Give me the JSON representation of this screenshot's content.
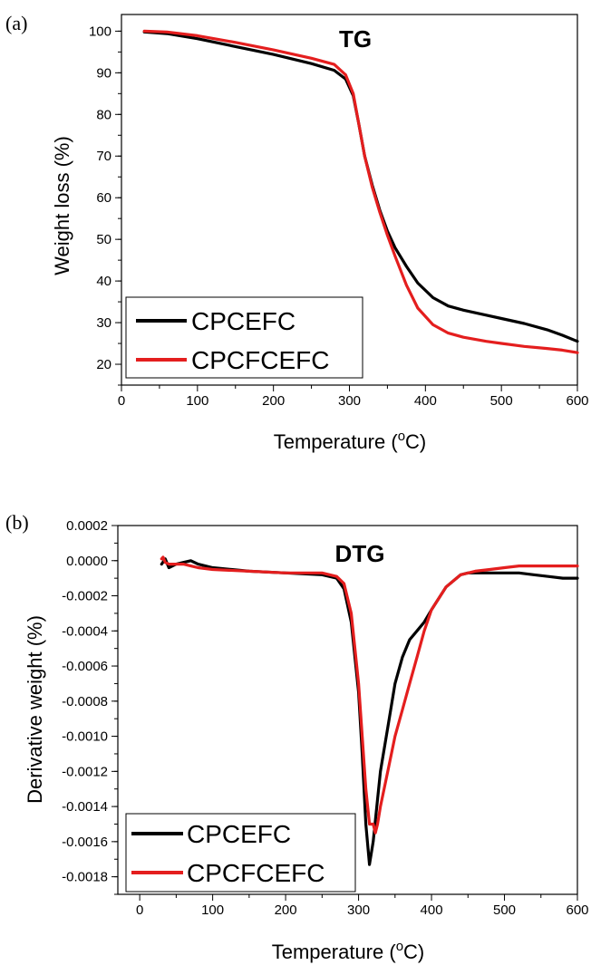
{
  "chart_data": [
    {
      "type": "line",
      "panel_label": "(a)",
      "title": "TG",
      "xlabel": "Temperature (",
      "xlabel_sup": "o",
      "xlabel_unit": "C)",
      "ylabel": "Weight loss (%)",
      "xlim": [
        0,
        600
      ],
      "ylim": [
        15,
        104
      ],
      "xticks": [
        "0",
        "100",
        "200",
        "300",
        "400",
        "500",
        "600"
      ],
      "yticks": [
        "20",
        "30",
        "40",
        "50",
        "60",
        "70",
        "80",
        "90",
        "100"
      ],
      "legend_position": "bottom-left",
      "series": [
        {
          "name": "CPCEFC",
          "color": "#000000",
          "x": [
            30,
            60,
            100,
            150,
            200,
            250,
            280,
            295,
            305,
            312,
            320,
            330,
            340,
            350,
            360,
            375,
            390,
            410,
            430,
            450,
            480,
            500,
            530,
            560,
            580,
            600
          ],
          "y": [
            99.8,
            99.4,
            98.2,
            96.3,
            94.4,
            92.2,
            90.6,
            88.5,
            84.5,
            78.0,
            70.0,
            63.0,
            57.0,
            52.0,
            48.0,
            43.5,
            39.5,
            36.0,
            34.0,
            33.0,
            31.8,
            31.0,
            29.8,
            28.3,
            27.0,
            25.5
          ]
        },
        {
          "name": "CPCFCEFC",
          "color": "#e41e1e",
          "x": [
            30,
            60,
            100,
            150,
            200,
            250,
            280,
            295,
            305,
            312,
            320,
            330,
            340,
            350,
            360,
            375,
            390,
            410,
            430,
            450,
            480,
            500,
            530,
            560,
            580,
            600
          ],
          "y": [
            100.0,
            99.8,
            98.9,
            97.3,
            95.5,
            93.5,
            92.0,
            89.5,
            85.0,
            78.0,
            70.0,
            62.5,
            56.5,
            51.0,
            46.0,
            39.0,
            33.5,
            29.5,
            27.5,
            26.5,
            25.5,
            25.0,
            24.3,
            23.8,
            23.4,
            22.8
          ]
        }
      ]
    },
    {
      "type": "line",
      "panel_label": "(b)",
      "title": "DTG",
      "xlabel": "Temperature (",
      "xlabel_sup": "o",
      "xlabel_unit": "C)",
      "ylabel": "Derivative weight (%)",
      "xlim": [
        -30,
        600
      ],
      "ylim": [
        -0.0019,
        0.0002
      ],
      "xticks": [
        "0",
        "100",
        "200",
        "300",
        "400",
        "500",
        "600"
      ],
      "yticks": [
        "0.0002",
        "0.0000",
        "-0.0002",
        "-0.0004",
        "-0.0006",
        "-0.0008",
        "-0.0010",
        "-0.0012",
        "-0.0014",
        "-0.0016",
        "-0.0018"
      ],
      "legend_position": "bottom-left",
      "series": [
        {
          "name": "CPCEFC",
          "color": "#000000",
          "x": [
            30,
            35,
            40,
            50,
            60,
            70,
            75,
            80,
            100,
            150,
            200,
            250,
            270,
            280,
            290,
            300,
            305,
            310,
            315,
            320,
            325,
            330,
            340,
            350,
            360,
            370,
            380,
            390,
            400,
            420,
            440,
            450,
            460,
            480,
            500,
            520,
            540,
            560,
            580,
            600
          ],
          "y": [
            -2e-05,
            1e-05,
            -4e-05,
            -2e-05,
            -1e-05,
            0.0,
            -1e-05,
            -2e-05,
            -4e-05,
            -6e-05,
            -7e-05,
            -8e-05,
            -0.0001,
            -0.00016,
            -0.00035,
            -0.00075,
            -0.0011,
            -0.0015,
            -0.00173,
            -0.0016,
            -0.0014,
            -0.0012,
            -0.00095,
            -0.0007,
            -0.00055,
            -0.00045,
            -0.0004,
            -0.00035,
            -0.00028,
            -0.00015,
            -8e-05,
            -7e-05,
            -7e-05,
            -7e-05,
            -7e-05,
            -7e-05,
            -8e-05,
            -9e-05,
            -0.0001,
            -0.0001
          ]
        },
        {
          "name": "CPCFCEFC",
          "color": "#e41e1e",
          "x": [
            30,
            32,
            35,
            40,
            50,
            60,
            70,
            80,
            100,
            150,
            200,
            250,
            270,
            280,
            290,
            300,
            305,
            310,
            315,
            320,
            323,
            326,
            330,
            340,
            350,
            360,
            370,
            380,
            390,
            400,
            420,
            440,
            460,
            480,
            500,
            520,
            540,
            560,
            580,
            600
          ],
          "y": [
            1e-05,
            2e-05,
            -1e-05,
            -2e-05,
            -2e-05,
            -2e-05,
            -3e-05,
            -4e-05,
            -5e-05,
            -6e-05,
            -7e-05,
            -7e-05,
            -9e-05,
            -0.00013,
            -0.0003,
            -0.0007,
            -0.001,
            -0.0013,
            -0.0015,
            -0.0015,
            -0.00155,
            -0.0015,
            -0.0014,
            -0.0012,
            -0.001,
            -0.00085,
            -0.0007,
            -0.00055,
            -0.0004,
            -0.00028,
            -0.00015,
            -8e-05,
            -6e-05,
            -5e-05,
            -4e-05,
            -3e-05,
            -3e-05,
            -3e-05,
            -3e-05,
            -3e-05
          ]
        }
      ]
    }
  ]
}
